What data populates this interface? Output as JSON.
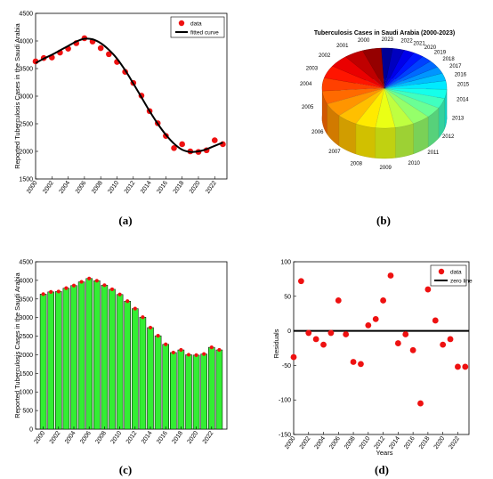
{
  "chart_data": [
    {
      "type": "line",
      "caption": "(a)",
      "ylabel": "Reported Tuberculosis Cases in the Saudi Arabia",
      "xlim": [
        2000,
        2023.5
      ],
      "ylim": [
        1500,
        4500
      ],
      "xticks": [
        "2000",
        "2002",
        "2004",
        "2006",
        "2008",
        "2010",
        "2012",
        "2014",
        "2016",
        "2018",
        "2020",
        "2022"
      ],
      "yticks": [
        "1500",
        "2000",
        "2500",
        "3000",
        "3500",
        "4000",
        "4500"
      ],
      "legend": [
        "data",
        "fitted curve"
      ],
      "legend_position": "top-right",
      "grid": false,
      "series": [
        {
          "name": "data",
          "style": "red markers",
          "x": [
            2000,
            2001,
            2002,
            2003,
            2004,
            2005,
            2006,
            2007,
            2008,
            2009,
            2010,
            2011,
            2012,
            2013,
            2014,
            2015,
            2016,
            2017,
            2018,
            2019,
            2020,
            2021,
            2022,
            2023
          ],
          "y": [
            3630,
            3690,
            3700,
            3790,
            3860,
            3960,
            4050,
            3990,
            3870,
            3760,
            3620,
            3440,
            3240,
            3010,
            2730,
            2510,
            2280,
            2060,
            2130,
            2000,
            1990,
            2020,
            2200,
            2130
          ]
        },
        {
          "name": "fitted curve",
          "style": "black line",
          "x": [
            2000,
            2001,
            2002,
            2003,
            2004,
            2005,
            2006,
            2007,
            2008,
            2009,
            2010,
            2011,
            2012,
            2013,
            2014,
            2015,
            2016,
            2017,
            2018,
            2019,
            2020,
            2021,
            2022,
            2023
          ],
          "y": [
            3600,
            3680,
            3750,
            3830,
            3910,
            3990,
            4040,
            4030,
            3960,
            3840,
            3680,
            3470,
            3230,
            2980,
            2730,
            2500,
            2300,
            2140,
            2030,
            1990,
            2000,
            2040,
            2100,
            2160
          ]
        }
      ]
    },
    {
      "type": "pie",
      "caption": "(b)",
      "title": "Tuberculosis Cases in Saudi Arabia (2000-2023)",
      "categories": [
        "2000",
        "2001",
        "2002",
        "2003",
        "2004",
        "2005",
        "2006",
        "2007",
        "2008",
        "2009",
        "2010",
        "2011",
        "2012",
        "2013",
        "2014",
        "2015",
        "2016",
        "2017",
        "2018",
        "2019",
        "2020",
        "2021",
        "2022",
        "2023"
      ],
      "values": [
        3630,
        3690,
        3700,
        3790,
        3860,
        3960,
        4050,
        3990,
        3870,
        3760,
        3620,
        3440,
        3240,
        3010,
        2730,
        2510,
        2280,
        2060,
        2130,
        2000,
        1990,
        2020,
        2200,
        2130
      ]
    },
    {
      "type": "bar",
      "caption": "(c)",
      "ylabel": "Reported Tuberculosis Cases in the Saudi Arabia",
      "ylim": [
        0,
        4500
      ],
      "bar_color": "#33ee33",
      "categories": [
        "2000",
        "2001",
        "2002",
        "2003",
        "2004",
        "2005",
        "2006",
        "2007",
        "2008",
        "2009",
        "2010",
        "2011",
        "2012",
        "2013",
        "2014",
        "2015",
        "2016",
        "2017",
        "2018",
        "2019",
        "2020",
        "2021",
        "2022",
        "2023"
      ],
      "xticks": [
        "2000",
        "2002",
        "2004",
        "2006",
        "2008",
        "2010",
        "2012",
        "2014",
        "2016",
        "2018",
        "2020",
        "2022"
      ],
      "yticks": [
        "0",
        "500",
        "1000",
        "1500",
        "2000",
        "2500",
        "3000",
        "3500",
        "4000",
        "4500"
      ],
      "values": [
        3630,
        3690,
        3700,
        3790,
        3860,
        3960,
        4050,
        3990,
        3870,
        3760,
        3620,
        3440,
        3240,
        3010,
        2730,
        2510,
        2280,
        2060,
        2130,
        2000,
        1990,
        2020,
        2200,
        2130
      ]
    },
    {
      "type": "scatter",
      "caption": "(d)",
      "xlabel": "Years",
      "ylabel": "Residuals",
      "xlim": [
        2000,
        2023.5
      ],
      "ylim": [
        -150,
        100
      ],
      "xticks": [
        "2000",
        "2002",
        "2004",
        "2006",
        "2008",
        "2010",
        "2012",
        "2014",
        "2016",
        "2018",
        "2020",
        "2022"
      ],
      "yticks": [
        "-150",
        "-100",
        "-50",
        "0",
        "50",
        "100"
      ],
      "legend": [
        "data",
        "zero line"
      ],
      "legend_position": "top-right",
      "series": [
        {
          "name": "data",
          "style": "red markers",
          "x": [
            2000,
            2001,
            2002,
            2003,
            2004,
            2005,
            2006,
            2007,
            2008,
            2009,
            2010,
            2011,
            2012,
            2013,
            2014,
            2015,
            2016,
            2017,
            2018,
            2019,
            2020,
            2021,
            2022,
            2023
          ],
          "y": [
            -38,
            72,
            -3,
            -12,
            -20,
            -3,
            44,
            -5,
            -45,
            -48,
            8,
            17,
            44,
            80,
            -18,
            -5,
            -28,
            -105,
            60,
            15,
            -20,
            -12,
            -52,
            -52
          ]
        },
        {
          "name": "zero line",
          "style": "black line",
          "x": [
            2000,
            2023.5
          ],
          "y": [
            0,
            0
          ]
        }
      ]
    }
  ]
}
